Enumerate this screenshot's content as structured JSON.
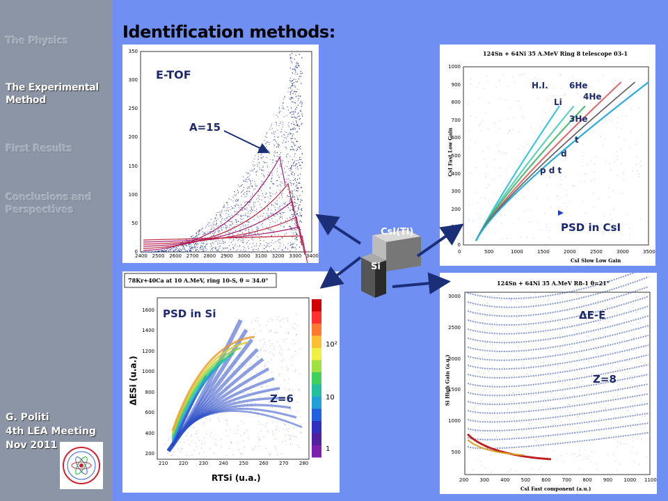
{
  "sidebar": {
    "items": [
      "The Physics",
      "The Experimental Method",
      "First Results",
      "Conclusions and Perspectives"
    ],
    "active_index": 1,
    "footer": [
      "G. Politi",
      "4th LEA Meeting",
      "Nov 2011"
    ]
  },
  "title": "Identification methods:",
  "panels": {
    "etof": {
      "label": "E-TOF",
      "annotation": "A=15",
      "x_ticks": [
        "2400",
        "2500",
        "2600",
        "2700",
        "2800",
        "2900",
        "3000",
        "3100",
        "3200",
        "3300",
        "3400"
      ],
      "y_ticks": [
        "0",
        "50",
        "100",
        "150",
        "200",
        "250",
        "300",
        "350"
      ]
    },
    "psd_csi": {
      "plot_title": "124Sn + 64Ni 35 A.MeV Ring 8 telescope 03-1",
      "label": "PSD in CsI",
      "isotopes": [
        "H.I.",
        "6He",
        "4He",
        "Li",
        "3He",
        "t",
        "d",
        "p d t"
      ],
      "xlabel": "CsI Slow Low Gain",
      "ylabel": "CsI Fast Low Gain",
      "x_ticks": [
        "0",
        "500",
        "1000",
        "1500",
        "2000",
        "2500",
        "3000",
        "3500"
      ],
      "y_ticks": [
        "0",
        "100",
        "200",
        "300",
        "400",
        "500",
        "600",
        "700",
        "800",
        "900",
        "1000"
      ]
    },
    "psd_si": {
      "plot_title": "78Kr+40Ca at 10 A.MeV, ring 10-S, θ = 34.0°",
      "label": "PSD in Si",
      "annotation": "Z=6",
      "xlabel": "RTSi (u.a.)",
      "ylabel": "ΔESi (u.a.)",
      "x_ticks": [
        "210",
        "220",
        "230",
        "240",
        "250",
        "260",
        "270",
        "280"
      ],
      "y_ticks": [
        "200",
        "400",
        "600",
        "800",
        "1000",
        "1200",
        "1400",
        "1600"
      ],
      "color_ticks": [
        "10²",
        "10",
        "1"
      ]
    },
    "de_e": {
      "plot_title": "124Sn + 64Ni 35 A.MeV R8-1 θ=21°",
      "label": "ΔE-E",
      "annotation": "Z=8",
      "xlabel": "CsI Fast component (a.u.)",
      "ylabel": "Si High Gain (a.u.)",
      "x_ticks": [
        "200",
        "300",
        "400",
        "500",
        "600",
        "700",
        "800",
        "900",
        "1000",
        "1100"
      ],
      "y_ticks": [
        "500",
        "1000",
        "1500",
        "2000",
        "2500",
        "3000"
      ]
    }
  },
  "detector": {
    "front": "Si",
    "back": "CsI(Tl)"
  },
  "colors": {
    "background": "#6f8ff3",
    "sidebar": "#8c95a5",
    "arrow": "#1b2e78",
    "label": "#1c2a6c"
  }
}
